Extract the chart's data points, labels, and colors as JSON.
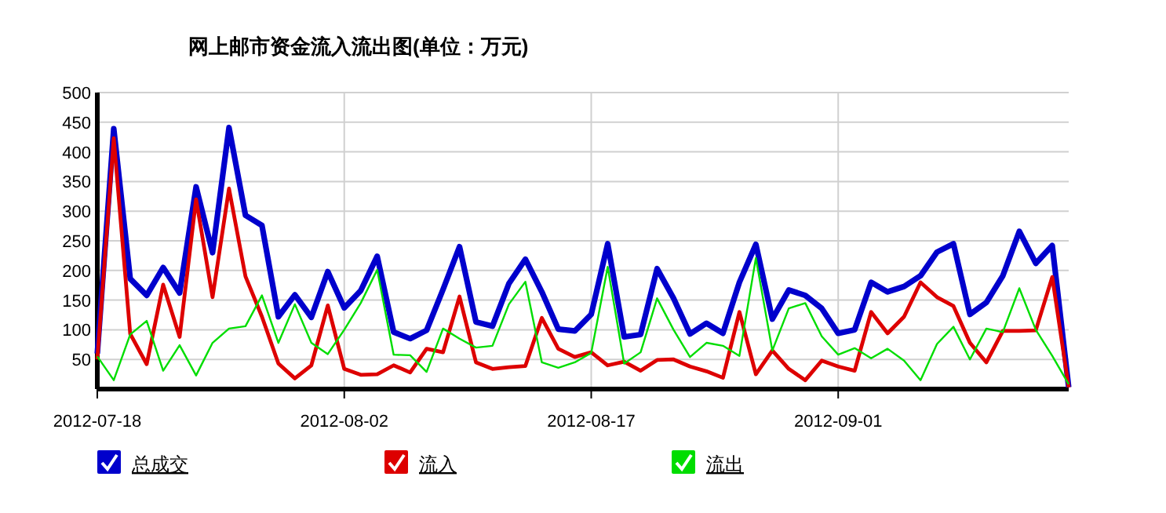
{
  "chart_data": {
    "type": "line",
    "title": "网上邮市资金流入流出图(单位：万元)",
    "x": [
      "2012-07-18",
      "2012-07-19",
      "2012-07-20",
      "2012-07-21",
      "2012-07-22",
      "2012-07-23",
      "2012-07-24",
      "2012-07-25",
      "2012-07-26",
      "2012-07-27",
      "2012-07-28",
      "2012-07-29",
      "2012-07-30",
      "2012-07-31",
      "2012-08-01",
      "2012-08-02",
      "2012-08-03",
      "2012-08-04",
      "2012-08-05",
      "2012-08-06",
      "2012-08-07",
      "2012-08-08",
      "2012-08-09",
      "2012-08-10",
      "2012-08-11",
      "2012-08-12",
      "2012-08-13",
      "2012-08-14",
      "2012-08-15",
      "2012-08-16",
      "2012-08-17",
      "2012-08-18",
      "2012-08-19",
      "2012-08-20",
      "2012-08-21",
      "2012-08-22",
      "2012-08-23",
      "2012-08-24",
      "2012-08-25",
      "2012-08-26",
      "2012-08-27",
      "2012-08-28",
      "2012-08-29",
      "2012-08-30",
      "2012-08-31",
      "2012-09-01",
      "2012-09-02",
      "2012-09-03",
      "2012-09-04",
      "2012-09-05",
      "2012-09-06",
      "2012-09-07",
      "2012-09-08",
      "2012-09-09",
      "2012-09-10",
      "2012-09-11",
      "2012-09-12",
      "2012-09-13",
      "2012-09-14",
      "2012-09-15"
    ],
    "series": [
      {
        "name": "总成交",
        "color": "#0000cc",
        "values": [
          60,
          439,
          186,
          158,
          205,
          162,
          341,
          230,
          441,
          293,
          276,
          122,
          159,
          121,
          198,
          137,
          166,
          224,
          96,
          85,
          99,
          168,
          240,
          113,
          106,
          178,
          219,
          164,
          101,
          98,
          126,
          245,
          88,
          92,
          203,
          153,
          93,
          111,
          94,
          180,
          244,
          118,
          167,
          158,
          136,
          94,
          100,
          180,
          164,
          173,
          191,
          231,
          245,
          126,
          146,
          191,
          266,
          212,
          242,
          3
        ]
      },
      {
        "name": "流入",
        "color": "#dd0000",
        "values": [
          50,
          423,
          93,
          42,
          176,
          88,
          320,
          155,
          338,
          190,
          122,
          43,
          18,
          40,
          141,
          34,
          24,
          25,
          40,
          28,
          68,
          62,
          156,
          45,
          34,
          37,
          39,
          120,
          68,
          54,
          62,
          40,
          46,
          31,
          49,
          50,
          38,
          30,
          19,
          130,
          25,
          65,
          34,
          15,
          48,
          38,
          31,
          130,
          94,
          122,
          180,
          155,
          140,
          78,
          45,
          98,
          98,
          99,
          189,
          3
        ]
      },
      {
        "name": "流出",
        "color": "#00dd00",
        "values": [
          55,
          15,
          92,
          115,
          31,
          74,
          23,
          78,
          102,
          106,
          158,
          78,
          143,
          78,
          59,
          100,
          145,
          201,
          58,
          57,
          29,
          102,
          85,
          70,
          73,
          143,
          181,
          45,
          36,
          45,
          61,
          206,
          43,
          62,
          153,
          100,
          54,
          78,
          73,
          56,
          221,
          65,
          136,
          145,
          89,
          58,
          69,
          52,
          68,
          48,
          15,
          76,
          105,
          50,
          102,
          96,
          170,
          100,
          56,
          8
        ]
      }
    ],
    "xlim": [
      "2012-07-18",
      "2012-09-15"
    ],
    "xticks": [
      "2012-07-18",
      "2012-08-02",
      "2012-08-17",
      "2012-09-01"
    ],
    "ylim": [
      0,
      500
    ],
    "yticks": [
      50,
      100,
      150,
      200,
      250,
      300,
      350,
      400,
      450,
      500
    ],
    "grid": true,
    "legend": "bottom",
    "marker": "none"
  }
}
